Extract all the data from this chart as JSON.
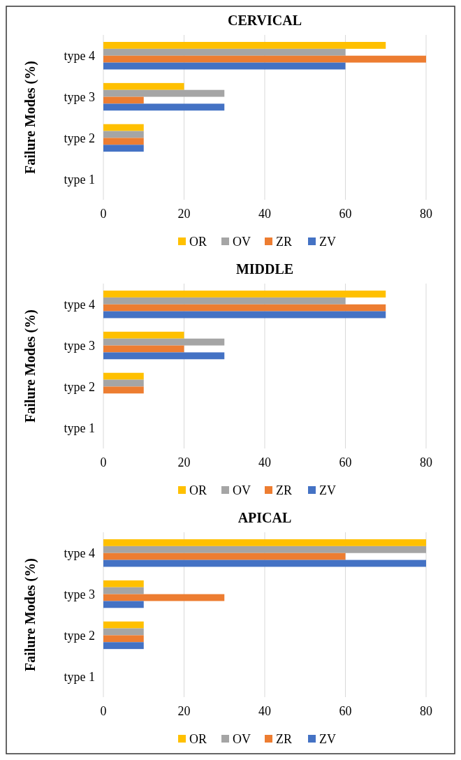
{
  "chart_data": [
    {
      "type": "bar",
      "orientation": "horizontal",
      "title": "CERVICAL",
      "ylabel": "Failure Modes (%)",
      "categories": [
        "type 4",
        "type 3",
        "type 2",
        "type 1"
      ],
      "xlim": [
        0,
        80
      ],
      "xticks": [
        0,
        20,
        40,
        60,
        80
      ],
      "grid": "x",
      "legend": "bottom",
      "series": [
        {
          "name": "OR",
          "color": "#ffc000",
          "values": [
            70,
            20,
            10,
            0
          ]
        },
        {
          "name": "OV",
          "color": "#a5a5a5",
          "values": [
            60,
            30,
            10,
            0
          ]
        },
        {
          "name": "ZR",
          "color": "#ed7d31",
          "values": [
            80,
            10,
            10,
            0
          ]
        },
        {
          "name": "ZV",
          "color": "#4472c4",
          "values": [
            60,
            30,
            10,
            0
          ]
        }
      ]
    },
    {
      "type": "bar",
      "orientation": "horizontal",
      "title": "MIDDLE",
      "ylabel": "Failure Modes (%)",
      "categories": [
        "type 4",
        "type 3",
        "type 2",
        "type 1"
      ],
      "xlim": [
        0,
        80
      ],
      "xticks": [
        0,
        20,
        40,
        60,
        80
      ],
      "grid": "x",
      "legend": "bottom",
      "series": [
        {
          "name": "OR",
          "color": "#ffc000",
          "values": [
            70,
            20,
            10,
            0
          ]
        },
        {
          "name": "OV",
          "color": "#a5a5a5",
          "values": [
            60,
            30,
            10,
            0
          ]
        },
        {
          "name": "ZR",
          "color": "#ed7d31",
          "values": [
            70,
            20,
            10,
            0
          ]
        },
        {
          "name": "ZV",
          "color": "#4472c4",
          "values": [
            70,
            30,
            0,
            0
          ]
        }
      ]
    },
    {
      "type": "bar",
      "orientation": "horizontal",
      "title": "APICAL",
      "ylabel": "Failure Modes (%)",
      "categories": [
        "type 4",
        "type 3",
        "type 2",
        "type 1"
      ],
      "xlim": [
        0,
        80
      ],
      "xticks": [
        0,
        20,
        40,
        60,
        80
      ],
      "grid": "x",
      "legend": "bottom",
      "series": [
        {
          "name": "OR",
          "color": "#ffc000",
          "values": [
            80,
            10,
            10,
            0
          ]
        },
        {
          "name": "OV",
          "color": "#a5a5a5",
          "values": [
            80,
            10,
            10,
            0
          ]
        },
        {
          "name": "ZR",
          "color": "#ed7d31",
          "values": [
            60,
            30,
            10,
            0
          ]
        },
        {
          "name": "ZV",
          "color": "#4472c4",
          "values": [
            80,
            10,
            10,
            0
          ]
        }
      ]
    }
  ]
}
